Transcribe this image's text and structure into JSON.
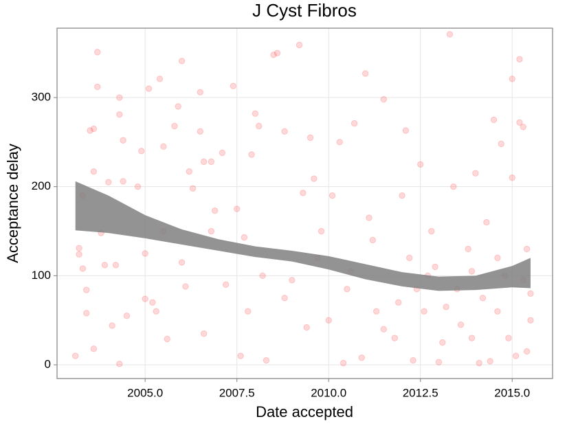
{
  "chart_data": {
    "type": "scatter",
    "title": "J Cyst Fibros",
    "x_label": "Date accepted",
    "y_label": "Acceptance delay",
    "color": "#ff0000",
    "x": [
      2003.1,
      2003.2,
      2003.2,
      2003.3,
      2003.3,
      2003.4,
      2003.4,
      2003.5,
      2003.6,
      2003.6,
      2003.6,
      2003.7,
      2003.7,
      2003.8,
      2004.0,
      2004.1,
      2004.2,
      2004.3,
      2004.3,
      2004.4,
      2004.4,
      2004.5,
      2004.3,
      2004.8,
      2004.9,
      2005.0,
      2005.0,
      2005.1,
      2005.2,
      2005.3,
      2005.4,
      2005.5,
      2005.6,
      2005.8,
      2005.9,
      2006.0,
      2006.0,
      2006.1,
      2006.2,
      2006.3,
      2006.5,
      2006.5,
      2006.6,
      2006.6,
      2006.8,
      2006.9,
      2007.1,
      2007.2,
      2007.4,
      2007.5,
      2007.6,
      2007.7,
      2007.9,
      2008.0,
      2008.1,
      2008.2,
      2008.3,
      2008.5,
      2008.6,
      2008.8,
      2009.0,
      2009.2,
      2009.3,
      2009.4,
      2009.5,
      2009.6,
      2009.8,
      2010.0,
      2010.1,
      2010.3,
      2010.4,
      2010.6,
      2010.7,
      2010.9,
      2011.0,
      2011.1,
      2011.3,
      2011.5,
      2011.5,
      2011.8,
      2012.0,
      2012.1,
      2012.2,
      2012.3,
      2012.4,
      2012.5,
      2012.6,
      2012.8,
      2012.9,
      2013.0,
      2013.1,
      2013.3,
      2013.4,
      2013.5,
      2013.6,
      2013.8,
      2013.9,
      2014.0,
      2014.1,
      2014.2,
      2014.3,
      2014.4,
      2014.5,
      2014.6,
      2014.7,
      2014.8,
      2014.9,
      2015.0,
      2015.0,
      2015.1,
      2015.2,
      2015.2,
      2015.3,
      2015.4,
      2015.4,
      2015.5,
      2015.5,
      2003.9,
      2005.5,
      2006.8,
      2007.8,
      2008.8,
      2009.7,
      2010.5,
      2011.2,
      2011.9,
      2012.7,
      2013.2,
      2013.9,
      2014.6,
      2015.3
    ],
    "values": [
      10,
      131,
      124,
      108,
      190,
      84,
      58,
      263,
      265,
      217,
      18,
      351,
      312,
      148,
      205,
      44,
      112,
      300,
      281,
      252,
      206,
      55,
      1,
      200,
      240,
      125,
      74,
      310,
      70,
      60,
      321,
      245,
      29,
      268,
      290,
      341,
      115,
      88,
      217,
      198,
      306,
      262,
      228,
      35,
      228,
      173,
      238,
      90,
      313,
      175,
      10,
      143,
      236,
      282,
      268,
      100,
      5,
      348,
      350,
      262,
      95,
      359,
      193,
      42,
      255,
      209,
      150,
      50,
      190,
      250,
      2,
      105,
      271,
      8,
      327,
      165,
      60,
      40,
      298,
      30,
      190,
      263,
      120,
      5,
      85,
      225,
      60,
      150,
      110,
      3,
      25,
      371,
      200,
      85,
      45,
      130,
      30,
      215,
      2,
      75,
      160,
      4,
      275,
      60,
      248,
      100,
      30,
      321,
      210,
      10,
      272,
      343,
      267,
      130,
      15,
      80,
      50,
      112,
      150,
      150,
      60,
      75,
      120,
      85,
      140,
      70,
      100,
      65,
      105,
      120,
      95
    ],
    "band": {
      "color": "#808080",
      "x": [
        2003.1,
        2004,
        2005,
        2006,
        2007,
        2008,
        2009,
        2010,
        2011,
        2012,
        2013,
        2014,
        2015,
        2015.5
      ],
      "upper": [
        206,
        190,
        168,
        152,
        141,
        133,
        128,
        122,
        113,
        104,
        99,
        100,
        111,
        120
      ],
      "lower": [
        151,
        148,
        142,
        135,
        128,
        121,
        116,
        107,
        96,
        88,
        83,
        84,
        87,
        86
      ]
    },
    "xlim": [
      2002.6,
      2016.1
    ],
    "ylim": [
      -15.4,
      377.9
    ],
    "xticks": [
      {
        "value": 2005,
        "label": "2005.0"
      },
      2007.5,
      {
        "value": 2010,
        "label": "2010.0"
      },
      2012.5,
      {
        "value": 2015,
        "label": "2015.0"
      }
    ],
    "yticks": [
      0,
      100,
      200,
      300
    ],
    "grid": true
  }
}
